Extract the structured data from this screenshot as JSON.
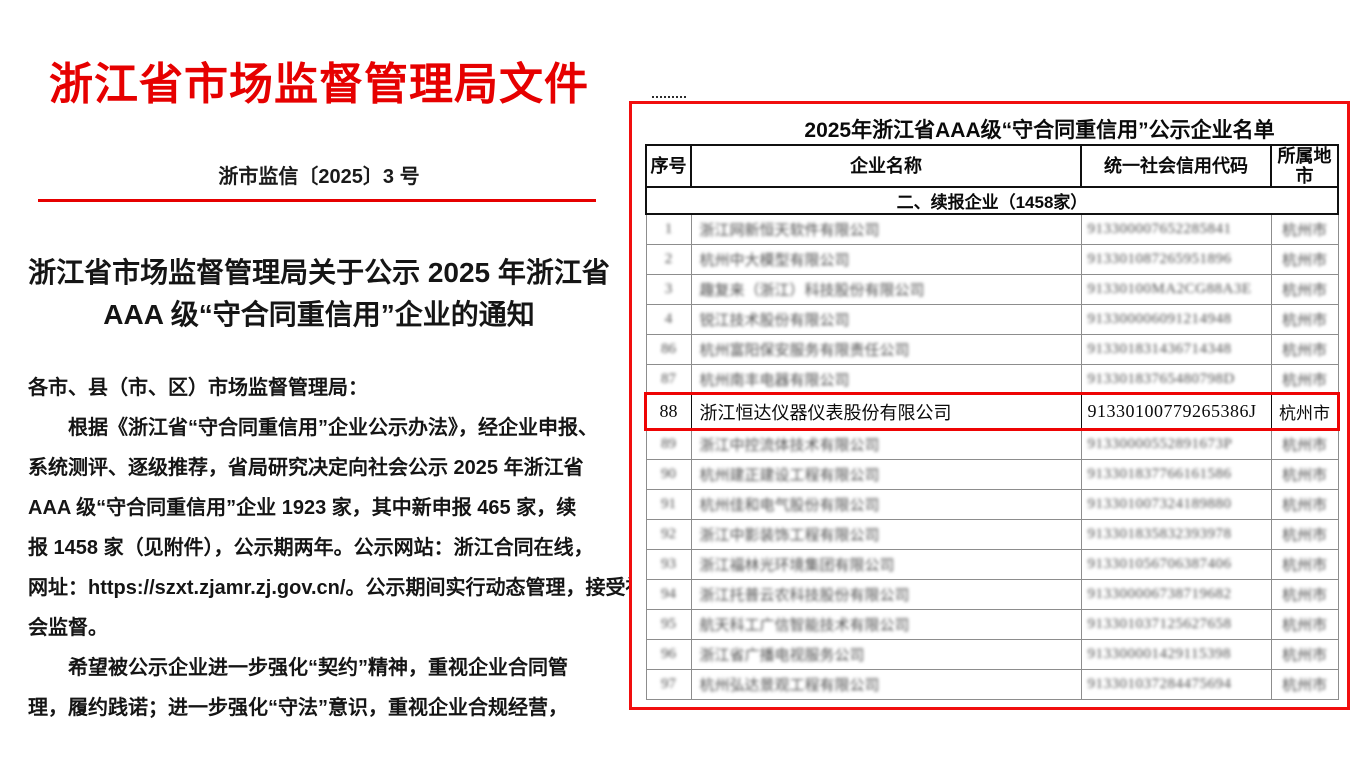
{
  "document": {
    "agency_title": "浙江省市场监督管理局文件",
    "doc_number": "浙市监信〔2025〕3 号",
    "heading_line1": "浙江省市场监督管理局关于公示 2025 年浙江省",
    "heading_line2": "AAA 级“守合同重信用”企业的通知",
    "body_lines": [
      "各市、县（市、区）市场监督管理局：",
      "　　根据《浙江省“守合同重信用”企业公示办法》，经企业申报、",
      "系统测评、逐级推荐，省局研究决定向社会公示 2025 年浙江省",
      "AAA 级“守合同重信用”企业 1923 家，其中新申报 465 家，续",
      "报 1458 家（见附件），公示期两年。公示网站：浙江合同在线，",
      "网址：https://szxt.zjamr.zj.gov.cn/。公示期间实行动态管理，接受社",
      "会监督。",
      "　　希望被公示企业进一步强化“契约”精神，重视企业合同管",
      "理，履约践诺；进一步强化“守法”意识，重视企业合规经营，"
    ]
  },
  "panel": {
    "title": "2025年浙江省AAA级“守合同重信用”公示企业名单",
    "table": {
      "headers": [
        "序号",
        "企业名称",
        "统一社会信用代码",
        "所属地市"
      ],
      "section_label": "二、续报企业（1458家）",
      "rows": [
        {
          "index": "1",
          "name": "浙江网新恒天软件有限公司",
          "code": "913300007652285841",
          "city": "杭州市",
          "blurred": true
        },
        {
          "index": "2",
          "name": "杭州中大模型有限公司",
          "code": "913301087265951896",
          "city": "杭州市",
          "blurred": true
        },
        {
          "index": "3",
          "name": "趣复来（浙江）科技股份有限公司",
          "code": "91330100MA2CG88A3E",
          "city": "杭州市",
          "blurred": true
        },
        {
          "index": "4",
          "name": "锐江技术股份有限公司",
          "code": "913300006091214948",
          "city": "杭州市",
          "blurred": true
        },
        {
          "index": "86",
          "name": "杭州富阳保安服务有限责任公司",
          "code": "913301831436714348",
          "city": "杭州市",
          "blurred": true
        },
        {
          "index": "87",
          "name": "杭州南丰电器有限公司",
          "code": "91330183765480798D",
          "city": "杭州市",
          "blurred": true
        },
        {
          "index": "88",
          "name": "浙江恒达仪器仪表股份有限公司",
          "code": "91330100779265386J",
          "city": "杭州市",
          "blurred": false,
          "highlighted": true
        },
        {
          "index": "89",
          "name": "浙江中控流体技术有限公司",
          "code": "91330000552891673P",
          "city": "杭州市",
          "blurred": true
        },
        {
          "index": "90",
          "name": "杭州建正建设工程有限公司",
          "code": "913301837766161586",
          "city": "杭州市",
          "blurred": true
        },
        {
          "index": "91",
          "name": "杭州佳和电气股份有限公司",
          "code": "913301007324189880",
          "city": "杭州市",
          "blurred": true
        },
        {
          "index": "92",
          "name": "浙江中影装饰工程有限公司",
          "code": "913301835832393978",
          "city": "杭州市",
          "blurred": true
        },
        {
          "index": "93",
          "name": "浙江福林光环境集团有限公司",
          "code": "913301056706387406",
          "city": "杭州市",
          "blurred": true
        },
        {
          "index": "94",
          "name": "浙江托普云农科技股份有限公司",
          "code": "913300006738719682",
          "city": "杭州市",
          "blurred": true
        },
        {
          "index": "95",
          "name": "航天科工广信智能技术有限公司",
          "code": "913301037125627658",
          "city": "杭州市",
          "blurred": true
        },
        {
          "index": "96",
          "name": "浙江省广播电视服务公司",
          "code": "913300001429115398",
          "city": "杭州市",
          "blurred": true
        },
        {
          "index": "97",
          "name": "杭州弘达景观工程有限公司",
          "code": "913301037284475694",
          "city": "杭州市",
          "blurred": true
        }
      ]
    }
  },
  "colors": {
    "accent_red": "#e60000",
    "panel_border_red": "#f10e0e",
    "highlight_border_red": "#ee0404",
    "text_black": "#151515"
  }
}
